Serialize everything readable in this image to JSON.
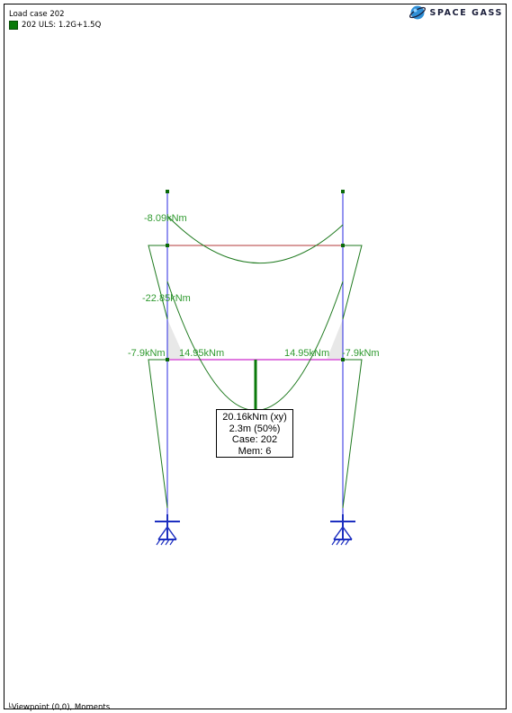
{
  "header": {
    "title": "Load case 202",
    "legend": "202 ULS: 1.2G+1.5Q",
    "legend_color": "#0a7a0a"
  },
  "logo": {
    "text": "SPACE GASS",
    "icon": "globe-icon"
  },
  "labels": {
    "top_beam_moment": "-8.09kNm",
    "left_column_moment": "-22.85kNm",
    "left_joint_outer": "-7.9kNm",
    "left_beam_end": "14.95kNm",
    "right_beam_end": "14.95kNm",
    "right_joint_outer": "-7.9kNm"
  },
  "info": {
    "moment": "20.16kNm (xy)",
    "position": "2.3m (50%)",
    "case": "Case: 202",
    "member": "Mem: 6"
  },
  "footer": {
    "viewpoint": "Viewpoint (0,0), Moments"
  },
  "colors": {
    "moment_diagram": "#1f7a1f",
    "label_text": "#2f9a2f",
    "columns": "#2a2ae0",
    "top_beam": "#b33a3a",
    "lower_beam": "#e07ae0",
    "supports": "#1d2fc0"
  }
}
